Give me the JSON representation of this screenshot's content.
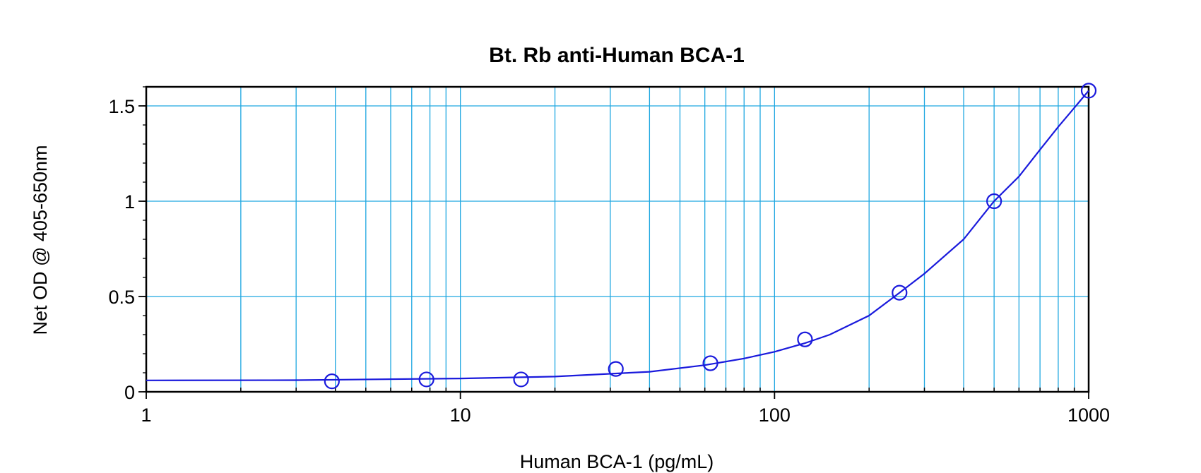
{
  "chart_data": {
    "type": "scatter",
    "title": "Bt. Rb anti-Human BCA-1",
    "xlabel": "Human BCA-1 (pg/mL)",
    "ylabel": "Net OD @ 405-650nm",
    "x_scale": "log",
    "xlim": [
      1,
      1000
    ],
    "ylim": [
      0,
      1.6
    ],
    "x_ticks": [
      1,
      10,
      100,
      1000
    ],
    "x_tick_labels": [
      "1",
      "10",
      "100",
      "1000"
    ],
    "y_ticks": [
      0,
      0.5,
      1,
      1.5
    ],
    "y_tick_labels": [
      "0",
      "0.5",
      "1",
      "1.5"
    ],
    "grid": true,
    "legend": "none",
    "colors": {
      "series": "#1a1adc",
      "grid": "#1ea7e1",
      "frame": "#000000"
    },
    "series": [
      {
        "points": [
          {
            "x": 3.9,
            "y": 0.055
          },
          {
            "x": 7.8,
            "y": 0.065
          },
          {
            "x": 15.6,
            "y": 0.065
          },
          {
            "x": 31.25,
            "y": 0.12
          },
          {
            "x": 62.5,
            "y": 0.15
          },
          {
            "x": 125,
            "y": 0.275
          },
          {
            "x": 250,
            "y": 0.52
          },
          {
            "x": 500,
            "y": 1.0
          },
          {
            "x": 1000,
            "y": 1.58
          }
        ],
        "fit_curve": [
          {
            "x": 1,
            "y": 0.06
          },
          {
            "x": 3,
            "y": 0.061
          },
          {
            "x": 10,
            "y": 0.07
          },
          {
            "x": 20,
            "y": 0.08
          },
          {
            "x": 40,
            "y": 0.105
          },
          {
            "x": 60,
            "y": 0.14
          },
          {
            "x": 80,
            "y": 0.175
          },
          {
            "x": 100,
            "y": 0.21
          },
          {
            "x": 125,
            "y": 0.255
          },
          {
            "x": 150,
            "y": 0.3
          },
          {
            "x": 200,
            "y": 0.4
          },
          {
            "x": 250,
            "y": 0.52
          },
          {
            "x": 300,
            "y": 0.62
          },
          {
            "x": 400,
            "y": 0.8
          },
          {
            "x": 500,
            "y": 1.0
          },
          {
            "x": 600,
            "y": 1.13
          },
          {
            "x": 700,
            "y": 1.27
          },
          {
            "x": 800,
            "y": 1.39
          },
          {
            "x": 900,
            "y": 1.49
          },
          {
            "x": 1000,
            "y": 1.58
          }
        ]
      }
    ]
  }
}
